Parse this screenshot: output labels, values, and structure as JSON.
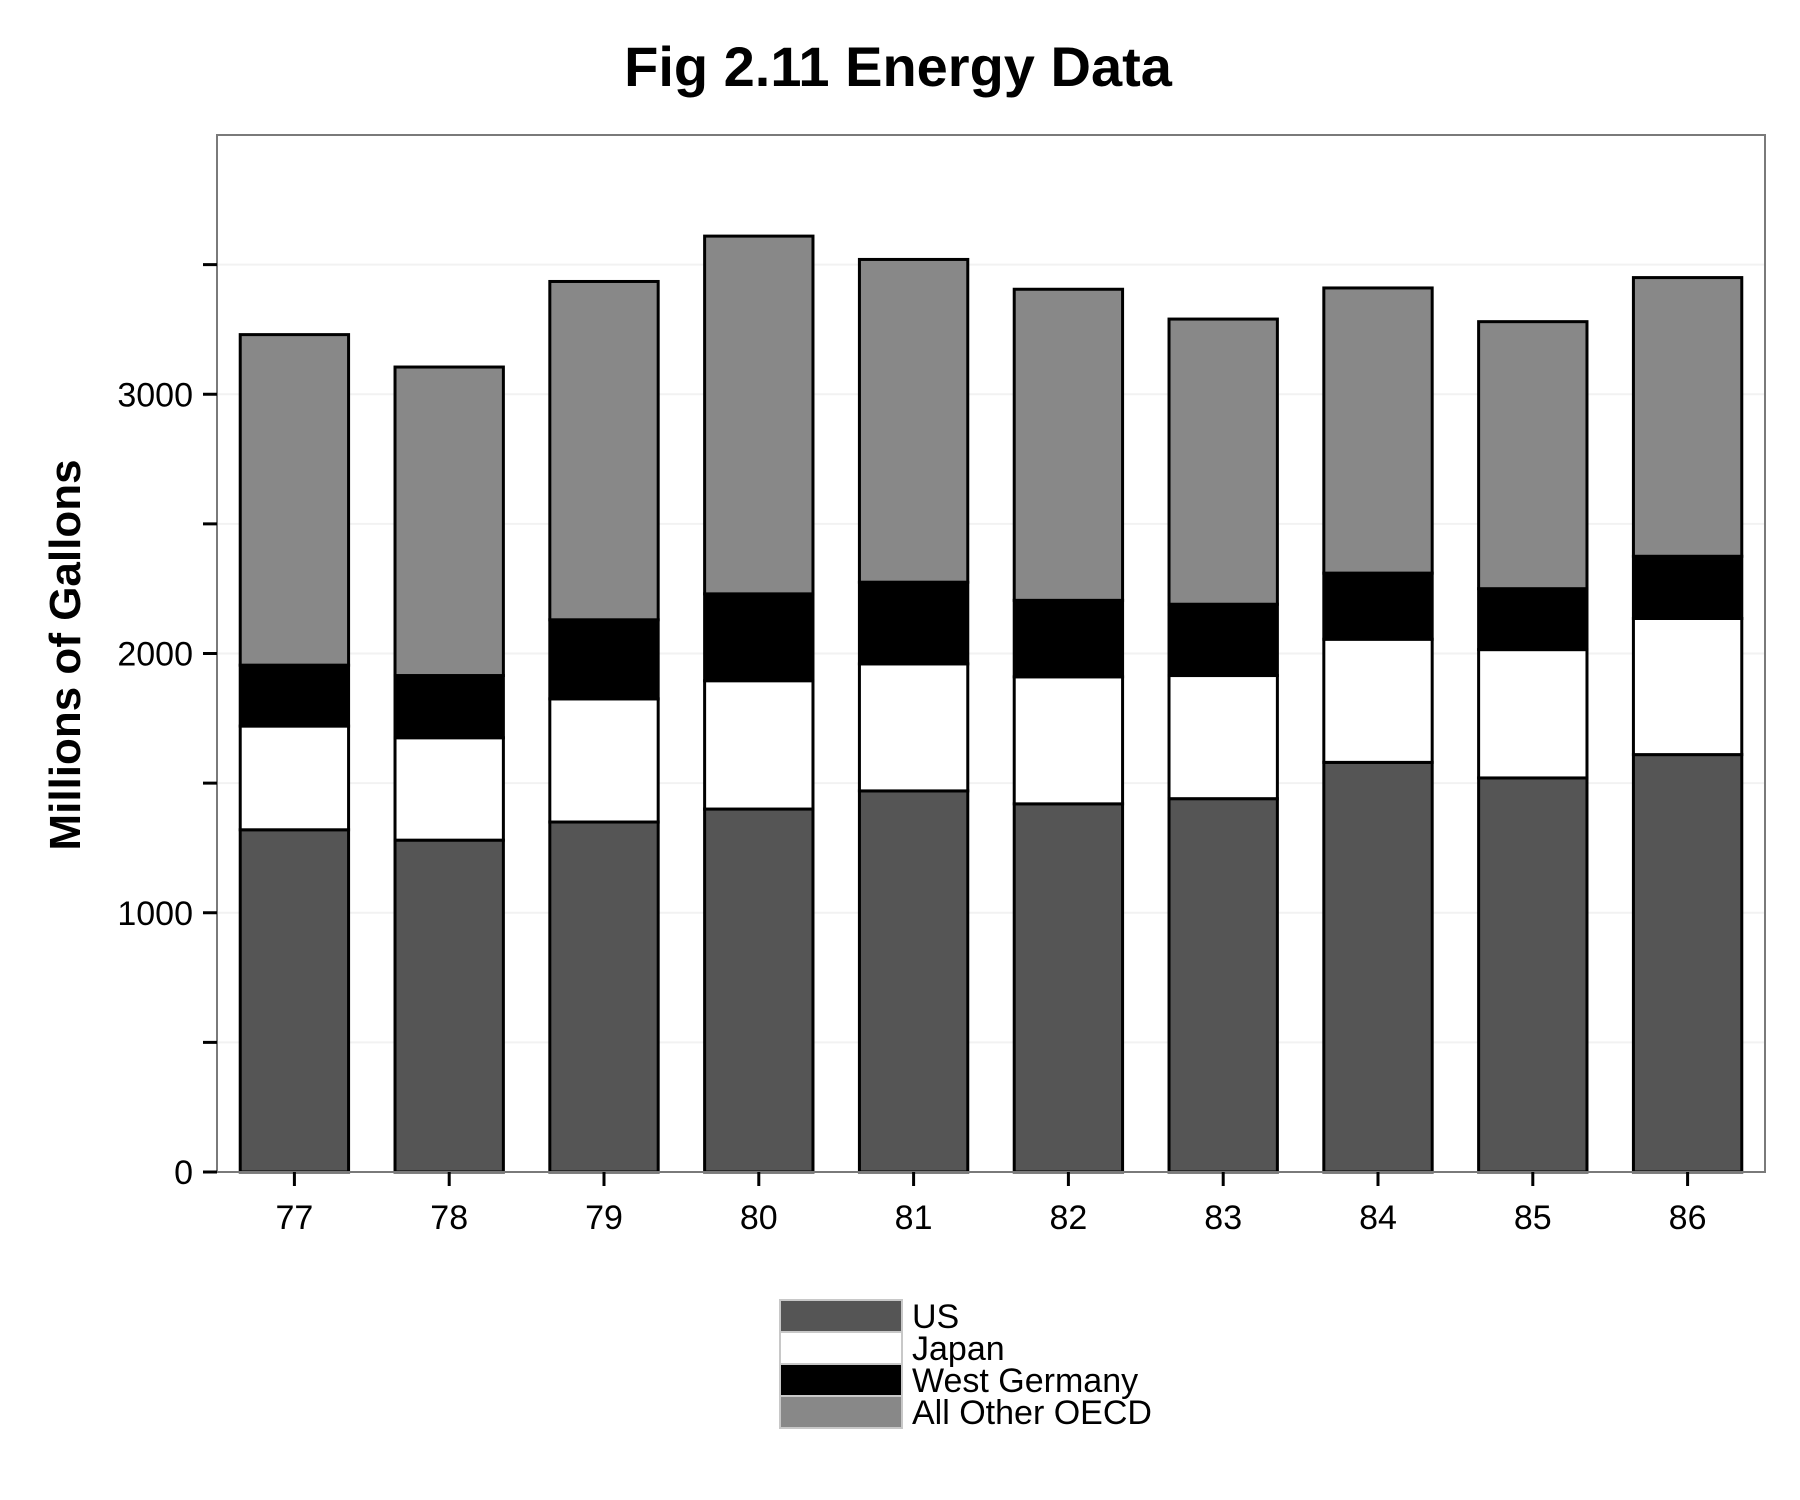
{
  "chart_data": {
    "type": "bar",
    "stacked": true,
    "title": "Fig 2.11 Energy Data",
    "xlabel": "",
    "ylabel": "Millions of Gallons",
    "categories": [
      "77",
      "78",
      "79",
      "80",
      "81",
      "82",
      "83",
      "84",
      "85",
      "86"
    ],
    "ylim": [
      0,
      4000
    ],
    "yticks": [
      0,
      1000,
      2000,
      3000
    ],
    "yticks_minor": [
      500,
      1500,
      2500,
      3500
    ],
    "grid": true,
    "legend_position": "bottom",
    "series": [
      {
        "name": "US",
        "color": "#555555",
        "values": [
          1320,
          1280,
          1350,
          1400,
          1470,
          1420,
          1440,
          1580,
          1520,
          1610
        ]
      },
      {
        "name": "Japan",
        "color": "#ffffff",
        "values": [
          400,
          395,
          475,
          495,
          490,
          490,
          475,
          475,
          495,
          525
        ]
      },
      {
        "name": "West Germany",
        "color": "#000000",
        "values": [
          235,
          240,
          305,
          335,
          315,
          295,
          275,
          255,
          235,
          240
        ]
      },
      {
        "name": "All Other OECD",
        "color": "#888888",
        "values": [
          1275,
          1190,
          1305,
          1380,
          1245,
          1200,
          1100,
          1100,
          1030,
          1075
        ]
      }
    ]
  }
}
